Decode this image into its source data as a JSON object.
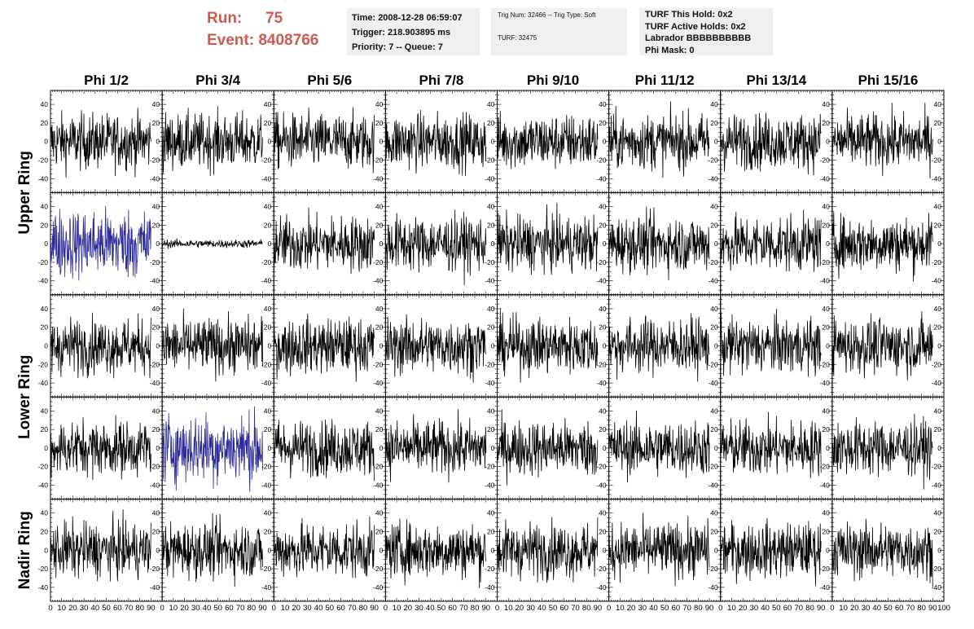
{
  "header": {
    "run_label": "Run:",
    "run_value": "75",
    "event_label": "Event:",
    "event_value": "8408766",
    "run_color": "#cc5a4f"
  },
  "info_time": {
    "time": "Time: 2008-12-28 06:59:07",
    "trigger": "Trigger: 218.903895 ms",
    "priority": "Priority: 7 -- Queue: 7"
  },
  "info_trig": {
    "trig_line": "Trig Num: 32466 -- Trig Type: Soft",
    "turf_line": "TURF: 32475"
  },
  "info_turf": {
    "this_hold": "TURF This Hold: 0x2",
    "active_holds": "TURF Active Holds: 0x2",
    "labrador": "Labrador BBBBBBBBBB",
    "phi_mask": "Phi Mask: 0"
  },
  "chart_data": {
    "type": "line",
    "columns": [
      "Phi 1/2",
      "Phi 3/4",
      "Phi 5/6",
      "Phi 7/8",
      "Phi 9/10",
      "Phi 11/12",
      "Phi 13/14",
      "Phi 15/16"
    ],
    "row_groups": [
      {
        "label": "Upper Ring",
        "rows": [
          0,
          1
        ]
      },
      {
        "label": "Lower Ring",
        "rows": [
          2,
          3
        ]
      },
      {
        "label": "Nadir Ring",
        "rows": [
          4
        ]
      }
    ],
    "xlim": [
      0,
      100
    ],
    "ylim": [
      -55,
      55
    ],
    "x_ticks": [
      0,
      10,
      20,
      30,
      40,
      50,
      60,
      70,
      80,
      90,
      100
    ],
    "y_ticks": [
      -40,
      -20,
      0,
      20,
      40
    ],
    "x_tick_labels": [
      "0",
      "10",
      "20",
      "30",
      "40",
      "50",
      "60",
      "70",
      "80",
      "90",
      "100"
    ],
    "y_tick_labels": [
      "-40",
      "-20",
      "0",
      "20",
      "40"
    ],
    "trace_color": "#000000",
    "highlight_color": "#2a2a9a",
    "highlighted": [
      {
        "row": 1,
        "col": 0
      },
      {
        "row": 3,
        "col": 1
      }
    ],
    "quiet": [
      {
        "row": 1,
        "col": 1
      }
    ],
    "samples_per_trace": 260,
    "typical_amplitude": 15
  }
}
